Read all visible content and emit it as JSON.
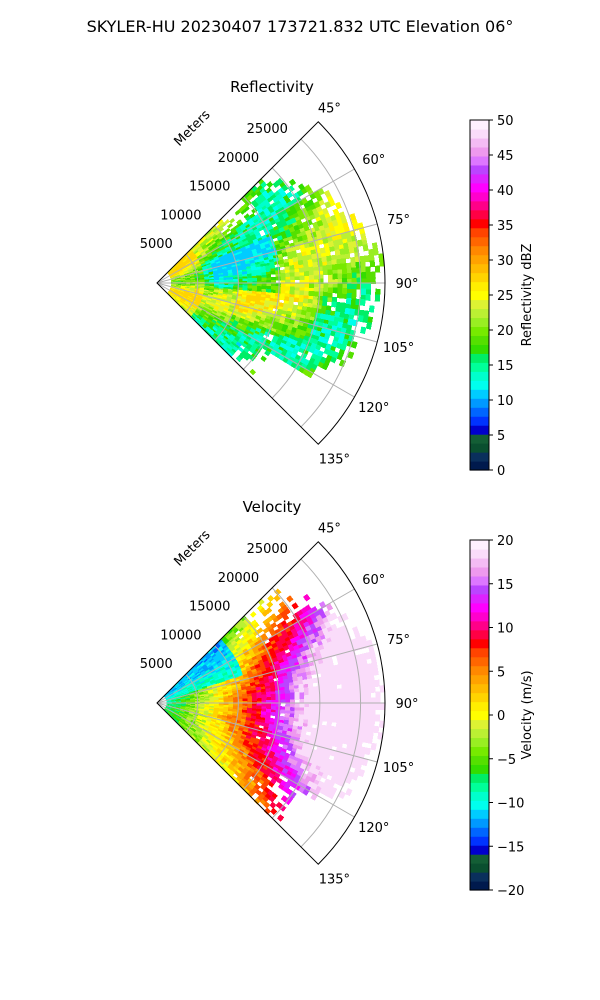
{
  "figure": {
    "suptitle": "SKYLER-HU  20230407  173721.832 UTC Elevation 06°"
  },
  "chart_data": [
    {
      "type": "heatmap",
      "projection": "polar-sector",
      "title": "Reflectivity",
      "range_label": "Meters",
      "range_ticks": [
        5000,
        10000,
        15000,
        20000,
        25000
      ],
      "range_tick_labels": [
        "5000",
        "10000",
        "15000",
        "20000",
        "25000"
      ],
      "range_max": 28000,
      "azimuth_ticks": [
        45,
        60,
        75,
        90,
        105,
        120,
        135
      ],
      "azimuth_tick_labels": [
        "45°",
        "60°",
        "75°",
        "90°",
        "105°",
        "120°",
        "135°"
      ],
      "azimuth_range": [
        45,
        135
      ],
      "grid": true,
      "colorbar": {
        "label": "Reflectivity dBZ",
        "vmin": 0,
        "vmax": 50,
        "ticks": [
          0,
          5,
          10,
          15,
          20,
          25,
          30,
          35,
          40,
          45,
          50
        ],
        "tick_labels": [
          "0",
          "5",
          "10",
          "15",
          "20",
          "25",
          "30",
          "35",
          "40",
          "45",
          "50"
        ],
        "colors": [
          "#001a4d",
          "#0a2f5c",
          "#0a4f2f",
          "#135e35",
          "#0000cc",
          "#0033ff",
          "#0066ff",
          "#0099ff",
          "#00ccff",
          "#00ffee",
          "#00ffcc",
          "#00ff99",
          "#00ee66",
          "#33dd00",
          "#55e000",
          "#77ea00",
          "#99ee22",
          "#bbf033",
          "#ddf233",
          "#ffff00",
          "#ffee00",
          "#ffd400",
          "#ffbb00",
          "#ffa200",
          "#ff8800",
          "#ff6600",
          "#ff4400",
          "#ff0000",
          "#ff0044",
          "#ff0088",
          "#ff00cc",
          "#ff00ff",
          "#dd22ff",
          "#bb44ff",
          "#dd77ff",
          "#ee99ee",
          "#f4bbf4",
          "#fadcfa",
          "#fff0ff"
        ]
      }
    },
    {
      "type": "heatmap",
      "projection": "polar-sector",
      "title": "Velocity",
      "range_label": "Meters",
      "range_ticks": [
        5000,
        10000,
        15000,
        20000,
        25000
      ],
      "range_tick_labels": [
        "5000",
        "10000",
        "15000",
        "20000",
        "25000"
      ],
      "range_max": 28000,
      "azimuth_ticks": [
        45,
        60,
        75,
        90,
        105,
        120,
        135
      ],
      "azimuth_tick_labels": [
        "45°",
        "60°",
        "75°",
        "90°",
        "105°",
        "120°",
        "135°"
      ],
      "azimuth_range": [
        45,
        135
      ],
      "grid": true,
      "colorbar": {
        "label": "Velocity (m/s)",
        "vmin": -20,
        "vmax": 20,
        "ticks": [
          -20,
          -15,
          -10,
          -5,
          0,
          5,
          10,
          15,
          20
        ],
        "tick_labels": [
          "−20",
          "−15",
          "−10",
          "−5",
          "0",
          "5",
          "10",
          "15",
          "20"
        ],
        "colors": [
          "#001a4d",
          "#0a2f5c",
          "#0a4f2f",
          "#135e35",
          "#0000cc",
          "#0033ff",
          "#0066ff",
          "#0099ff",
          "#00ccff",
          "#00ffee",
          "#00ffcc",
          "#00ff99",
          "#00ee66",
          "#33dd00",
          "#55e000",
          "#77ea00",
          "#99ee22",
          "#bbf033",
          "#ddf233",
          "#ffff00",
          "#ffee00",
          "#ffd400",
          "#ffbb00",
          "#ffa200",
          "#ff8800",
          "#ff6600",
          "#ff4400",
          "#ff0000",
          "#ff0044",
          "#ff0088",
          "#ff00cc",
          "#ff00ff",
          "#dd22ff",
          "#bb44ff",
          "#dd77ff",
          "#ee99ee",
          "#f4bbf4",
          "#fadcfa",
          "#fff0ff"
        ]
      }
    }
  ]
}
